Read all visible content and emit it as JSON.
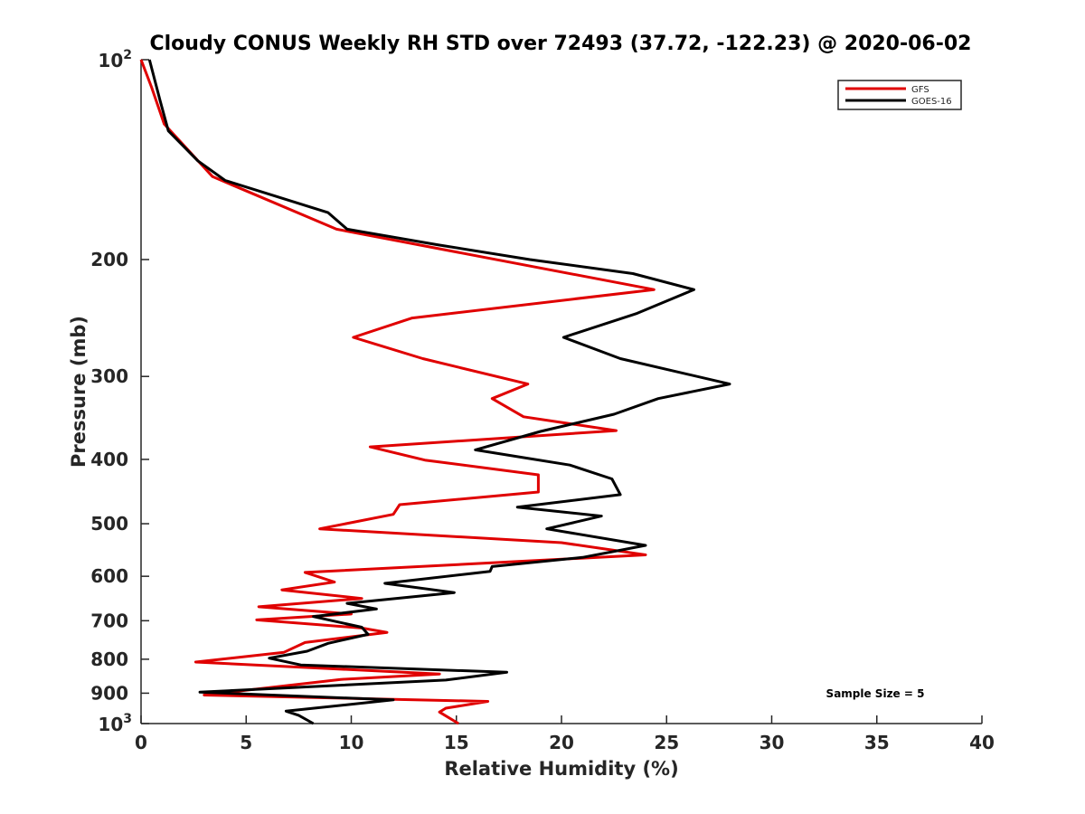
{
  "chart_data": {
    "type": "line",
    "title": "Cloudy CONUS Weekly RH STD over 72493 (37.72, -122.23) @ 2020-06-02",
    "xlabel": "Relative Humidity (%)",
    "ylabel": "Pressure (mb)",
    "xlim": [
      0,
      40
    ],
    "ylim": [
      100,
      1000
    ],
    "y_scale": "log",
    "y_reversed": true,
    "grid": false,
    "legend_position": "top-right",
    "x_ticks": [
      "0",
      "5",
      "10",
      "15",
      "20",
      "25",
      "30",
      "35",
      "40"
    ],
    "y_ticks": [
      {
        "value": 100,
        "base": "10",
        "exp": "2"
      },
      {
        "value": 200,
        "label": "200"
      },
      {
        "value": 300,
        "label": "300"
      },
      {
        "value": 400,
        "label": "400"
      },
      {
        "value": 500,
        "label": "500"
      },
      {
        "value": 600,
        "label": "600"
      },
      {
        "value": 700,
        "label": "700"
      },
      {
        "value": 800,
        "label": "800"
      },
      {
        "value": 900,
        "label": "900"
      },
      {
        "value": 1000,
        "base": "10",
        "exp": "3"
      }
    ],
    "annotation": "Sample Size = 5",
    "series": [
      {
        "name": "GFS",
        "color": "#e00000",
        "points": [
          [
            0.0,
            100
          ],
          [
            0.5,
            110
          ],
          [
            1.1,
            125
          ],
          [
            3.4,
            150
          ],
          [
            9.3,
            180
          ],
          [
            24.4,
            222
          ],
          [
            12.9,
            245
          ],
          [
            10.1,
            262
          ],
          [
            13.4,
            282
          ],
          [
            18.4,
            308
          ],
          [
            16.7,
            324
          ],
          [
            18.2,
            345
          ],
          [
            22.6,
            362
          ],
          [
            10.9,
            383
          ],
          [
            13.5,
            401
          ],
          [
            18.9,
            422
          ],
          [
            18.9,
            448
          ],
          [
            12.3,
            468
          ],
          [
            12.0,
            484
          ],
          [
            8.5,
            509
          ],
          [
            20.0,
            534
          ],
          [
            24.0,
            557
          ],
          [
            17.0,
            572
          ],
          [
            7.8,
            592
          ],
          [
            9.2,
            612
          ],
          [
            6.7,
            629
          ],
          [
            10.5,
            648
          ],
          [
            5.6,
            667
          ],
          [
            10.0,
            684
          ],
          [
            5.5,
            698
          ],
          [
            10.5,
            718
          ],
          [
            11.7,
            729
          ],
          [
            7.8,
            755
          ],
          [
            6.8,
            781
          ],
          [
            2.6,
            808
          ],
          [
            14.2,
            842
          ],
          [
            9.5,
            858
          ],
          [
            3.0,
            906
          ],
          [
            16.5,
            926
          ],
          [
            14.5,
            948
          ],
          [
            14.2,
            961
          ],
          [
            15.1,
            1000
          ]
        ]
      },
      {
        "name": "GOES-16",
        "color": "#000000",
        "points": [
          [
            0.4,
            100
          ],
          [
            0.9,
            115
          ],
          [
            1.3,
            128
          ],
          [
            2.7,
            142
          ],
          [
            4.0,
            152
          ],
          [
            8.9,
            170
          ],
          [
            9.8,
            180
          ],
          [
            14.1,
            190
          ],
          [
            18.5,
            200
          ],
          [
            23.4,
            210
          ],
          [
            26.3,
            222
          ],
          [
            23.6,
            241
          ],
          [
            20.1,
            262
          ],
          [
            22.8,
            282
          ],
          [
            28.0,
            308
          ],
          [
            24.6,
            324
          ],
          [
            22.5,
            342
          ],
          [
            19.0,
            363
          ],
          [
            15.9,
            387
          ],
          [
            20.4,
            408
          ],
          [
            22.4,
            428
          ],
          [
            22.8,
            452
          ],
          [
            17.9,
            472
          ],
          [
            21.9,
            487
          ],
          [
            19.3,
            509
          ],
          [
            24.0,
            539
          ],
          [
            21.0,
            562
          ],
          [
            16.7,
            580
          ],
          [
            16.6,
            590
          ],
          [
            11.6,
            615
          ],
          [
            14.9,
            635
          ],
          [
            9.8,
            659
          ],
          [
            11.2,
            672
          ],
          [
            8.2,
            690
          ],
          [
            10.5,
            716
          ],
          [
            10.8,
            734
          ],
          [
            8.9,
            757
          ],
          [
            7.9,
            778
          ],
          [
            6.1,
            797
          ],
          [
            7.6,
            816
          ],
          [
            17.4,
            837
          ],
          [
            14.5,
            860
          ],
          [
            2.8,
            897
          ],
          [
            12.0,
            921
          ],
          [
            6.9,
            958
          ],
          [
            7.5,
            972
          ],
          [
            8.2,
            1000
          ]
        ]
      }
    ]
  }
}
